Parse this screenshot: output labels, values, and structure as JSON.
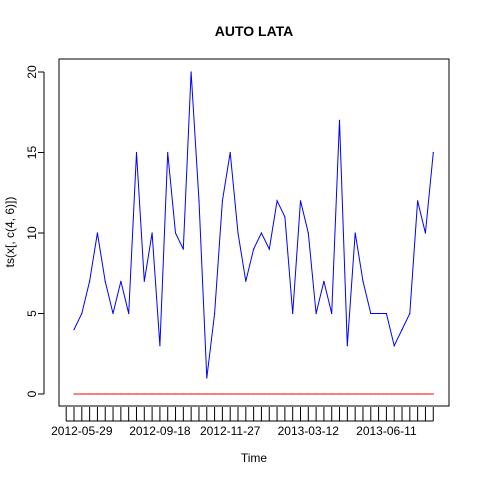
{
  "chart_data": {
    "type": "line",
    "title": "AUTO LATA",
    "xlabel": "Time",
    "ylabel": "ts(x[, c(4, 6)])",
    "ylim": [
      0,
      20
    ],
    "y_ticks": [
      0,
      5,
      10,
      15,
      20
    ],
    "x_tick_labels": [
      "2012-05-29",
      "2012-09-18",
      "2012-11-27",
      "2013-03-12",
      "2013-06-11"
    ],
    "x_tick_label_positions": [
      1,
      11,
      20,
      30,
      40
    ],
    "x_count": 47,
    "grid": false,
    "legend": "none",
    "series": [
      {
        "color": "#0000ff",
        "values": [
          4,
          5,
          7,
          10,
          7,
          5,
          7,
          5,
          15,
          7,
          10,
          3,
          15,
          10,
          9,
          20,
          12,
          1,
          5,
          12,
          15,
          10,
          7,
          9,
          10,
          9,
          12,
          11,
          5,
          12,
          10,
          5,
          7,
          5,
          17,
          3,
          10,
          7,
          5,
          5,
          5,
          3,
          4,
          5,
          12,
          10,
          15
        ]
      },
      {
        "color": "#ff0000",
        "values": [
          0,
          0,
          0,
          0,
          0,
          0,
          0,
          0,
          0,
          0,
          0,
          0,
          0,
          0,
          0,
          0,
          0,
          0,
          0,
          0,
          0,
          0,
          0,
          0,
          0,
          0,
          0,
          0,
          0,
          0,
          0,
          0,
          0,
          0,
          0,
          0,
          0,
          0,
          0,
          0,
          0,
          0,
          0,
          0,
          0,
          0,
          0
        ]
      }
    ]
  }
}
